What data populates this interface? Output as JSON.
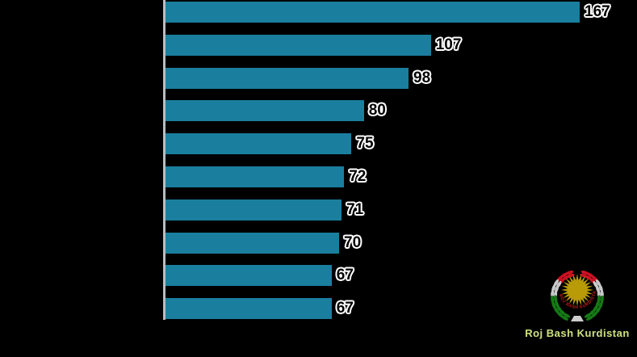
{
  "chart_data": {
    "type": "bar",
    "orientation": "horizontal",
    "title": "",
    "categories": [
      "",
      "",
      "",
      "",
      "",
      "",
      "",
      "",
      "",
      ""
    ],
    "values": [
      167,
      107,
      98,
      80,
      75,
      72,
      71,
      70,
      67,
      67
    ],
    "value_labels": [
      "167",
      "107",
      "98",
      "80",
      "75",
      "72",
      "71",
      "70",
      "67",
      "67"
    ],
    "xlim": [
      0,
      190
    ],
    "grid": false,
    "legend": "none",
    "category_labels_visible": false,
    "bar_color": "#1a7f9e",
    "background": "#000000",
    "axis_line_color": "#b7bec0",
    "value_label_color": "#000000",
    "value_label_outline": "#ffffff"
  },
  "watermark": {
    "caption": "Roj Bash Kurdistan",
    "emblem_ring_text": "ROJ BASH KURDISTAN",
    "caption_color": "#cde07e",
    "emblem": {
      "sun_color": "#b89b07",
      "ring_text_color": "#cc1a1a",
      "wreath_red": "#cc1122",
      "wreath_white": "#c9c9c9",
      "wreath_green": "#157a15",
      "pedestal_color": "#cccccc"
    }
  }
}
